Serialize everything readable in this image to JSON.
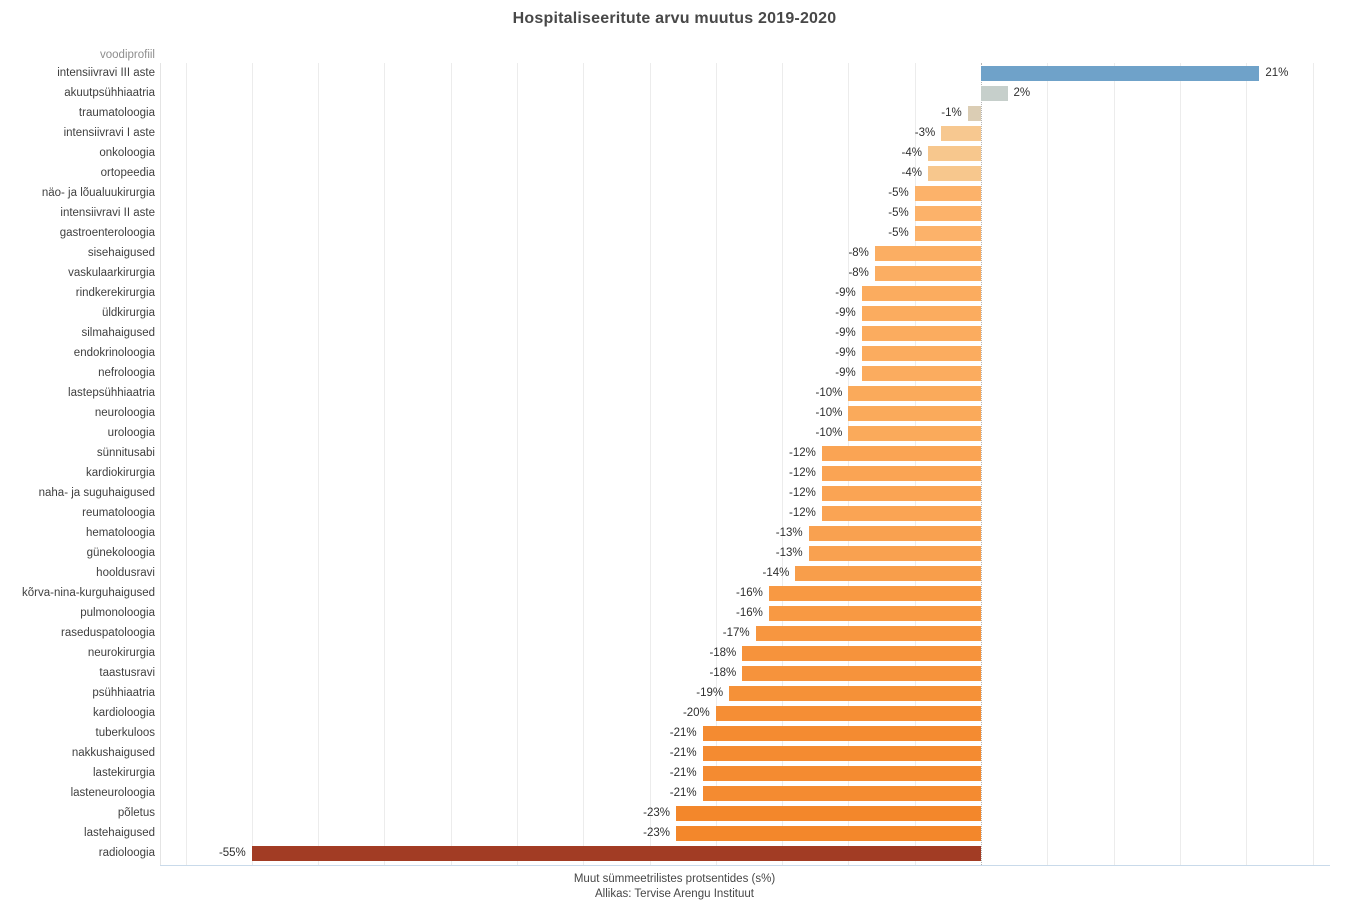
{
  "chart": {
    "title": "Hospitaliseeritute arvu muutus 2019-2020",
    "column_header": "voodiprofiil",
    "xlabel": "Muut sümmeetrilistes protsentides (s%)",
    "source": "Allikas: Tervise Arengu Instituut"
  },
  "chart_data": {
    "type": "bar",
    "orientation": "horizontal",
    "title": "Hospitaliseeritute arvu muutus 2019-2020",
    "xlabel": "Muut sümmeetrilistes protsentides (s%)",
    "source": "Allikas: Tervise Arengu Instituut",
    "column_header": "voodiprofiil",
    "xlim": [
      -60,
      25
    ],
    "grid_step": 5,
    "grid": true,
    "zero_line": "dotted",
    "axis_tick_labels_visible": false,
    "legend": "none",
    "categories": [
      "intensiivravi III aste",
      "akuutpsühhiaatria",
      "traumatoloogia",
      "intensiivravi I aste",
      "onkoloogia",
      "ortopeedia",
      "näo- ja lõualuukirurgia",
      "intensiivravi II aste",
      "gastroenteroloogia",
      "sisehaigused",
      "vaskulaarkirurgia",
      "rindkerekirurgia",
      "üldkirurgia",
      "silmahaigused",
      "endokrinoloogia",
      "nefroloogia",
      "lastepsühhiaatria",
      "neuroloogia",
      "uroloogia",
      "sünnitusabi",
      "kardiokirurgia",
      "naha- ja suguhaigused",
      "reumatoloogia",
      "hematoloogia",
      "günekoloogia",
      "hooldusravi",
      "kõrva-nina-kurguhaigused",
      "pulmonoloogia",
      "raseduspatoloogia",
      "neurokirurgia",
      "taastusravi",
      "psühhiaatria",
      "kardioloogia",
      "tuberkuloos",
      "nakkushaigused",
      "lastekirurgia",
      "lasteneuroloogia",
      "põletus",
      "lastehaigused",
      "radioloogia"
    ],
    "values": [
      21,
      2,
      -1,
      -3,
      -4,
      -4,
      -5,
      -5,
      -5,
      -8,
      -8,
      -9,
      -9,
      -9,
      -9,
      -9,
      -10,
      -10,
      -10,
      -12,
      -12,
      -12,
      -12,
      -13,
      -13,
      -14,
      -16,
      -16,
      -17,
      -18,
      -18,
      -19,
      -20,
      -21,
      -21,
      -21,
      -21,
      -23,
      -23,
      -55
    ],
    "labels": [
      "21%",
      "2%",
      "-1%",
      "-3%",
      "-4%",
      "-4%",
      "-5%",
      "-5%",
      "-5%",
      "-8%",
      "-8%",
      "-9%",
      "-9%",
      "-9%",
      "-9%",
      "-9%",
      "-10%",
      "-10%",
      "-10%",
      "-12%",
      "-12%",
      "-12%",
      "-12%",
      "-13%",
      "-13%",
      "-14%",
      "-16%",
      "-16%",
      "-17%",
      "-18%",
      "-18%",
      "-19%",
      "-20%",
      "-21%",
      "-21%",
      "-21%",
      "-21%",
      "-23%",
      "-23%",
      "-55%"
    ],
    "colors": [
      "#6FA2C9",
      "#C6CFCB",
      "#DBCDB4",
      "#F7C890",
      "#F7C78D",
      "#F7C78D",
      "#FCB26A",
      "#FCB26A",
      "#FCB26A",
      "#FBAE63",
      "#FBAE63",
      "#FBAC5F",
      "#FBAC5F",
      "#FBAC5F",
      "#FBAC5F",
      "#FBAC5F",
      "#FAAA5B",
      "#FAAA5B",
      "#FAAA5B",
      "#FAA454",
      "#FAA454",
      "#FAA454",
      "#FAA454",
      "#F9A150",
      "#F9A150",
      "#F89E4B",
      "#F89943",
      "#F89943",
      "#F79640",
      "#F6933C",
      "#F6933C",
      "#F59138",
      "#F58E35",
      "#F48B31",
      "#F48B31",
      "#F48B31",
      "#F48B31",
      "#F3872B",
      "#F3872B",
      "#A23C24"
    ],
    "palette": {
      "positive": "#6FA2C9",
      "neutral": "#C6CFCB",
      "negative_mid": "#F89943",
      "negative_extreme": "#A23C24"
    }
  }
}
